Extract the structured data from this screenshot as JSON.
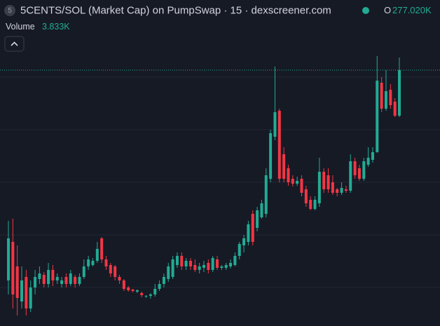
{
  "header": {
    "icon_text": "5",
    "title": "5CENTS/SOL (Market Cap) on PumpSwap · 15 · dexscreener.com",
    "open_label": "O",
    "open_value_label": "277.020K",
    "volume_label": "Volume",
    "volume_value_label": "3.833K"
  },
  "chart_data": {
    "type": "candlestick",
    "up_color": "#22ab94",
    "down_color": "#f23645",
    "ylim": [
      127,
      359.5
    ],
    "yticks": [
      154.5,
      192,
      229.5,
      267,
      304.5
    ],
    "grid": true,
    "open": [
      159.5,
      187,
      169.5,
      144.5,
      162,
      139.5,
      154.5,
      160.5,
      163.5,
      157,
      167,
      159.5,
      157,
      162,
      157,
      162,
      157,
      162,
      169.5,
      170.5,
      173.5,
      189.5,
      174.5,
      170.5,
      169.5,
      162,
      159.5,
      154.5,
      153,
      151.5,
      150.5,
      148,
      148.5,
      149.5,
      153.5,
      157,
      160.5,
      162,
      170.5,
      177,
      169.5,
      173.5,
      170.5,
      167,
      168.5,
      172,
      167,
      174.5,
      168.5,
      168.5,
      169.5,
      170.5,
      177,
      184.5,
      187,
      207,
      197,
      204.5,
      207,
      232,
      262,
      280.5,
      249.5,
      239.5,
      232,
      228.5,
      232,
      224.5,
      217,
      210.5,
      214.5,
      237,
      234.5,
      229.5,
      224.5,
      222,
      224.5,
      223.5,
      244.5,
      239.5,
      232,
      242,
      245.5,
      251,
      300.5,
      282,
      295.5,
      287,
      277.02
    ],
    "high": [
      202,
      203.5,
      184.5,
      169.5,
      167,
      159.5,
      167,
      169.5,
      165.5,
      172,
      170.5,
      164.5,
      162,
      164.5,
      167,
      163.5,
      164.5,
      174.5,
      177,
      175.5,
      187,
      190.5,
      177,
      172,
      170.5,
      163.5,
      160.5,
      155.5,
      153.5,
      153,
      151.5,
      149,
      150.5,
      157,
      159.5,
      164.5,
      172,
      177,
      179.5,
      179.5,
      175.5,
      175.5,
      174.5,
      172,
      173.5,
      174.5,
      177,
      177,
      170.5,
      172,
      174.5,
      179.5,
      187,
      192,
      202,
      209.5,
      212,
      217,
      239.5,
      267,
      312,
      282,
      254.5,
      242,
      234.5,
      233.5,
      234.5,
      227,
      219.5,
      219.5,
      247,
      239.5,
      239.5,
      234.5,
      225.5,
      229.5,
      227,
      249.5,
      247,
      242,
      247,
      254.5,
      254.5,
      319.5,
      304.5,
      309.5,
      299.5,
      289.5,
      318.5
    ],
    "low": [
      149.5,
      139.5,
      134.5,
      139.5,
      134.5,
      137,
      149.5,
      157,
      154.5,
      154.5,
      155.5,
      157,
      154.5,
      154.5,
      155.5,
      154.5,
      155.5,
      160.5,
      167,
      169.5,
      172,
      172,
      167,
      162,
      159.5,
      157,
      152,
      151.5,
      151,
      150.5,
      147.5,
      147,
      146.5,
      148,
      152,
      154.5,
      158.5,
      160.5,
      168.5,
      167,
      167,
      167,
      165.5,
      164.5,
      165.5,
      164.5,
      165.5,
      167,
      167,
      167,
      168,
      169.5,
      174.5,
      179.5,
      184.5,
      184.5,
      194.5,
      203.5,
      204.5,
      229.5,
      259.5,
      229.5,
      229.5,
      227,
      226.5,
      227,
      219.5,
      212,
      209.5,
      209.5,
      212,
      222,
      222,
      220.5,
      219.5,
      220.5,
      222,
      222,
      232,
      230.5,
      230.5,
      240.5,
      243.5,
      250.5,
      279.5,
      280.5,
      282,
      276,
      276
    ],
    "close": [
      189.5,
      149.5,
      147,
      159.5,
      139.5,
      154.5,
      162,
      164.5,
      157,
      167,
      159.5,
      162,
      159.5,
      157,
      164.5,
      157,
      162,
      169.5,
      174.5,
      173.5,
      182,
      174.5,
      169.5,
      164.5,
      162,
      159.5,
      153.5,
      152.5,
      152,
      152.5,
      149,
      148.5,
      149.5,
      153.5,
      157,
      162,
      169.5,
      174.5,
      177,
      169.5,
      173.5,
      169.5,
      167,
      169.5,
      170.5,
      167,
      175.5,
      168.5,
      169.5,
      170.5,
      172,
      177,
      185.5,
      189.5,
      199.5,
      187,
      209.5,
      214.5,
      234.5,
      264.5,
      279.5,
      232,
      232,
      229.5,
      228.5,
      230.5,
      222,
      214.5,
      210.5,
      217,
      237,
      224.5,
      224.5,
      222,
      222,
      225.5,
      223.5,
      244.5,
      234.5,
      232,
      244.5,
      247,
      251,
      302,
      282,
      294.5,
      284.5,
      277,
      309.5
    ]
  }
}
